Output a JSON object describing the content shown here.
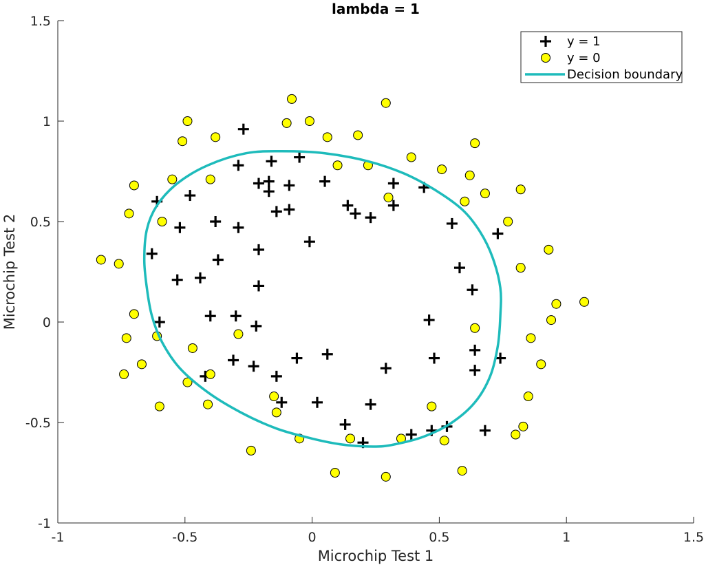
{
  "chart_data": {
    "type": "scatter",
    "title": "lambda = 1",
    "xlabel": "Microchip Test 1",
    "ylabel": "Microchip Test 2",
    "xlim": [
      -1,
      1.5
    ],
    "ylim": [
      -1,
      1.5
    ],
    "xticks": [
      "-1",
      "-0.5",
      "0",
      "0.5",
      "1",
      "1.5"
    ],
    "yticks": [
      "-1",
      "-0.5",
      "0",
      "0.5",
      "1",
      "1.5"
    ],
    "grid": false,
    "legend_position": "top-right",
    "series": [
      {
        "name": "y = 1",
        "marker": "plus",
        "color": "#000000",
        "points": [
          [
            -0.27,
            0.96
          ],
          [
            -0.29,
            0.78
          ],
          [
            -0.16,
            0.8
          ],
          [
            -0.05,
            0.82
          ],
          [
            -0.48,
            0.63
          ],
          [
            -0.21,
            0.69
          ],
          [
            -0.17,
            0.7
          ],
          [
            -0.09,
            0.68
          ],
          [
            -0.17,
            0.65
          ],
          [
            0.05,
            0.7
          ],
          [
            -0.61,
            0.6
          ],
          [
            -0.52,
            0.47
          ],
          [
            -0.38,
            0.5
          ],
          [
            -0.29,
            0.47
          ],
          [
            -0.14,
            0.55
          ],
          [
            -0.09,
            0.56
          ],
          [
            0.14,
            0.58
          ],
          [
            0.17,
            0.54
          ],
          [
            0.23,
            0.52
          ],
          [
            0.32,
            0.69
          ],
          [
            0.32,
            0.58
          ],
          [
            0.44,
            0.67
          ],
          [
            0.55,
            0.49
          ],
          [
            0.73,
            0.44
          ],
          [
            -0.63,
            0.34
          ],
          [
            -0.21,
            0.36
          ],
          [
            -0.37,
            0.31
          ],
          [
            -0.01,
            0.4
          ],
          [
            0.58,
            0.27
          ],
          [
            -0.53,
            0.21
          ],
          [
            -0.44,
            0.22
          ],
          [
            -0.21,
            0.18
          ],
          [
            0.63,
            0.16
          ],
          [
            -0.6,
            0.0
          ],
          [
            -0.4,
            0.03
          ],
          [
            -0.3,
            0.03
          ],
          [
            -0.22,
            -0.02
          ],
          [
            0.46,
            0.01
          ],
          [
            -0.31,
            -0.19
          ],
          [
            -0.23,
            -0.22
          ],
          [
            -0.06,
            -0.18
          ],
          [
            0.06,
            -0.16
          ],
          [
            0.48,
            -0.18
          ],
          [
            0.64,
            -0.14
          ],
          [
            0.74,
            -0.18
          ],
          [
            -0.42,
            -0.27
          ],
          [
            -0.14,
            -0.27
          ],
          [
            0.29,
            -0.23
          ],
          [
            0.64,
            -0.24
          ],
          [
            -0.12,
            -0.4
          ],
          [
            0.02,
            -0.4
          ],
          [
            0.23,
            -0.41
          ],
          [
            0.13,
            -0.51
          ],
          [
            0.2,
            -0.6
          ],
          [
            0.39,
            -0.56
          ],
          [
            0.47,
            -0.54
          ],
          [
            0.53,
            -0.52
          ],
          [
            0.68,
            -0.54
          ]
        ]
      },
      {
        "name": "y = 0",
        "marker": "circle",
        "color": "#ffff00",
        "points": [
          [
            -0.08,
            1.11
          ],
          [
            0.29,
            1.09
          ],
          [
            -0.49,
            1.0
          ],
          [
            -0.1,
            0.99
          ],
          [
            -0.01,
            1.0
          ],
          [
            -0.51,
            0.9
          ],
          [
            -0.38,
            0.92
          ],
          [
            0.06,
            0.92
          ],
          [
            0.18,
            0.93
          ],
          [
            0.64,
            0.89
          ],
          [
            0.1,
            0.78
          ],
          [
            0.22,
            0.78
          ],
          [
            0.39,
            0.82
          ],
          [
            0.51,
            0.76
          ],
          [
            0.62,
            0.73
          ],
          [
            -0.7,
            0.68
          ],
          [
            -0.55,
            0.71
          ],
          [
            -0.4,
            0.71
          ],
          [
            0.68,
            0.64
          ],
          [
            0.82,
            0.66
          ],
          [
            -0.72,
            0.54
          ],
          [
            -0.59,
            0.5
          ],
          [
            0.3,
            0.62
          ],
          [
            0.6,
            0.6
          ],
          [
            0.77,
            0.5
          ],
          [
            -0.83,
            0.31
          ],
          [
            -0.76,
            0.29
          ],
          [
            0.82,
            0.27
          ],
          [
            0.93,
            0.36
          ],
          [
            -0.7,
            0.04
          ],
          [
            0.64,
            -0.03
          ],
          [
            0.96,
            0.09
          ],
          [
            1.07,
            0.1
          ],
          [
            0.94,
            0.01
          ],
          [
            -0.73,
            -0.08
          ],
          [
            -0.61,
            -0.07
          ],
          [
            -0.47,
            -0.13
          ],
          [
            -0.29,
            -0.06
          ],
          [
            0.86,
            -0.08
          ],
          [
            -0.74,
            -0.26
          ],
          [
            -0.67,
            -0.21
          ],
          [
            -0.49,
            -0.3
          ],
          [
            -0.4,
            -0.26
          ],
          [
            0.9,
            -0.21
          ],
          [
            -0.6,
            -0.42
          ],
          [
            -0.41,
            -0.41
          ],
          [
            -0.15,
            -0.37
          ],
          [
            -0.14,
            -0.45
          ],
          [
            0.47,
            -0.42
          ],
          [
            0.85,
            -0.37
          ],
          [
            -0.05,
            -0.58
          ],
          [
            0.15,
            -0.58
          ],
          [
            0.35,
            -0.58
          ],
          [
            0.52,
            -0.59
          ],
          [
            0.8,
            -0.56
          ],
          [
            0.83,
            -0.52
          ],
          [
            -0.24,
            -0.64
          ],
          [
            0.09,
            -0.75
          ],
          [
            0.29,
            -0.77
          ],
          [
            0.59,
            -0.74
          ]
        ]
      }
    ],
    "decision_boundary": {
      "name": "Decision boundary",
      "color": "#1ebbbb",
      "points": [
        [
          -0.12,
          0.85
        ],
        [
          0.05,
          0.84
        ],
        [
          0.22,
          0.8
        ],
        [
          0.36,
          0.74
        ],
        [
          0.48,
          0.66
        ],
        [
          0.59,
          0.56
        ],
        [
          0.66,
          0.45
        ],
        [
          0.71,
          0.32
        ],
        [
          0.74,
          0.17
        ],
        [
          0.74,
          0.03
        ],
        [
          0.73,
          -0.12
        ],
        [
          0.7,
          -0.27
        ],
        [
          0.64,
          -0.4
        ],
        [
          0.55,
          -0.5
        ],
        [
          0.44,
          -0.57
        ],
        [
          0.32,
          -0.61
        ],
        [
          0.24,
          -0.62
        ],
        [
          0.12,
          -0.61
        ],
        [
          0.0,
          -0.58
        ],
        [
          -0.14,
          -0.53
        ],
        [
          -0.28,
          -0.45
        ],
        [
          -0.41,
          -0.35
        ],
        [
          -0.52,
          -0.23
        ],
        [
          -0.59,
          -0.1
        ],
        [
          -0.63,
          0.03
        ],
        [
          -0.65,
          0.17
        ],
        [
          -0.66,
          0.31
        ],
        [
          -0.65,
          0.46
        ],
        [
          -0.61,
          0.58
        ],
        [
          -0.53,
          0.69
        ],
        [
          -0.41,
          0.78
        ],
        [
          -0.26,
          0.84
        ],
        [
          -0.12,
          0.85
        ]
      ]
    },
    "legend": {
      "items": [
        {
          "label": "y = 1",
          "marker": "plus"
        },
        {
          "label": "y = 0",
          "marker": "circle"
        },
        {
          "label": "Decision boundary",
          "marker": "line"
        }
      ]
    }
  }
}
